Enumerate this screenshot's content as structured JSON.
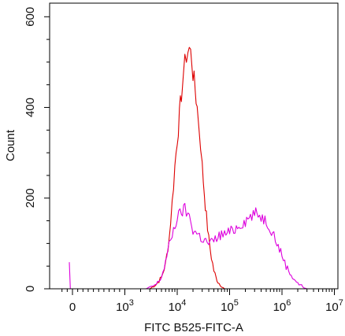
{
  "chart_data": {
    "type": "histogram",
    "title": "",
    "xlabel": "FITC B525-FITC-A",
    "ylabel": "Count",
    "xscale": "biexponential",
    "ylim": [
      0,
      630
    ],
    "yticks": [
      {
        "value": 0,
        "label": "0"
      },
      {
        "value": 200,
        "label": "200"
      },
      {
        "value": 400,
        "label": "400"
      },
      {
        "value": 600,
        "label": "600"
      }
    ],
    "xticks": [
      {
        "value": 0,
        "base": "0",
        "exp": ""
      },
      {
        "value": 1000,
        "base": "10",
        "exp": "3"
      },
      {
        "value": 10000,
        "base": "10",
        "exp": "4"
      },
      {
        "value": 100000,
        "base": "10",
        "exp": "5"
      },
      {
        "value": 1000000,
        "base": "10",
        "exp": "6"
      },
      {
        "value": 10000000,
        "base": "10",
        "exp": "7"
      }
    ],
    "grid": false,
    "legend": "none",
    "series": [
      {
        "color": "#dd0000",
        "points": [
          [
            3000,
            0
          ],
          [
            4000,
            10
          ],
          [
            5000,
            25
          ],
          [
            6000,
            55
          ],
          [
            7000,
            110
          ],
          [
            8000,
            190
          ],
          [
            9000,
            270
          ],
          [
            10000,
            330
          ],
          [
            11000,
            380
          ],
          [
            12000,
            430
          ],
          [
            13000,
            470
          ],
          [
            14000,
            495
          ],
          [
            15000,
            515
          ],
          [
            16000,
            525
          ],
          [
            17000,
            530
          ],
          [
            18000,
            520
          ],
          [
            19000,
            505
          ],
          [
            20000,
            475
          ],
          [
            22000,
            440
          ],
          [
            24000,
            400
          ],
          [
            26000,
            360
          ],
          [
            28000,
            320
          ],
          [
            30000,
            270
          ],
          [
            33000,
            210
          ],
          [
            36000,
            160
          ],
          [
            40000,
            110
          ],
          [
            45000,
            70
          ],
          [
            50000,
            40
          ],
          [
            55000,
            25
          ],
          [
            60000,
            15
          ],
          [
            70000,
            6
          ],
          [
            80000,
            0
          ]
        ]
      },
      {
        "color": "#dd00dd",
        "points": [
          [
            -300,
            55
          ],
          [
            -200,
            0
          ],
          [
            2500,
            0
          ],
          [
            3000,
            3
          ],
          [
            4000,
            10
          ],
          [
            5000,
            25
          ],
          [
            6000,
            60
          ],
          [
            7000,
            95
          ],
          [
            8000,
            120
          ],
          [
            9000,
            140
          ],
          [
            10000,
            155
          ],
          [
            12000,
            170
          ],
          [
            14000,
            175
          ],
          [
            16000,
            165
          ],
          [
            18000,
            150
          ],
          [
            20000,
            130
          ],
          [
            25000,
            120
          ],
          [
            30000,
            110
          ],
          [
            35000,
            105
          ],
          [
            40000,
            100
          ],
          [
            50000,
            105
          ],
          [
            60000,
            115
          ],
          [
            70000,
            120
          ],
          [
            80000,
            120
          ],
          [
            100000,
            125
          ],
          [
            120000,
            130
          ],
          [
            150000,
            140
          ],
          [
            200000,
            150
          ],
          [
            250000,
            160
          ],
          [
            300000,
            165
          ],
          [
            350000,
            165
          ],
          [
            400000,
            160
          ],
          [
            500000,
            150
          ],
          [
            600000,
            135
          ],
          [
            700000,
            120
          ],
          [
            800000,
            100
          ],
          [
            1000000,
            75
          ],
          [
            1200000,
            50
          ],
          [
            1500000,
            30
          ],
          [
            2000000,
            12
          ],
          [
            2500000,
            5
          ],
          [
            3000000,
            0
          ]
        ]
      }
    ]
  }
}
